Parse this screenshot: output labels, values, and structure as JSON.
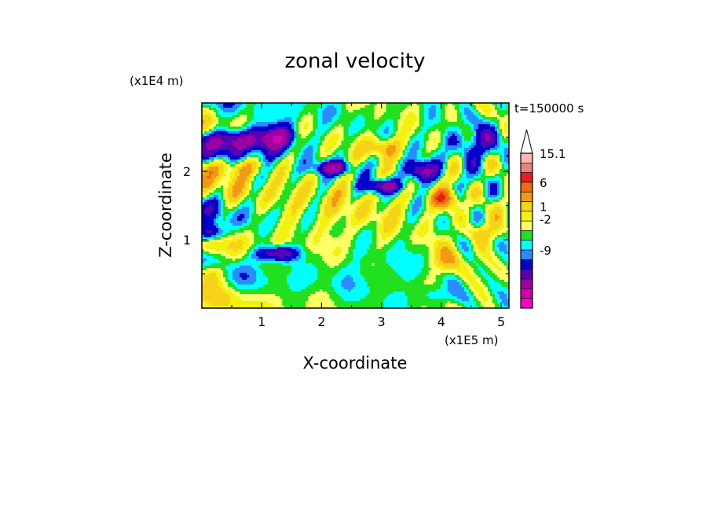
{
  "chart_data": {
    "type": "heatmap",
    "title": "zonal velocity",
    "xlabel": "X-coordinate",
    "ylabel": "Z-coordinate",
    "x_unit": "(x1E5 m)",
    "y_unit": "(x1E4 m)",
    "time_label": "t=150000 s",
    "x_ticks": [
      "1",
      "2",
      "3",
      "4",
      "5"
    ],
    "y_ticks": [
      "1",
      "2"
    ],
    "xlim": [
      0,
      5.13
    ],
    "ylim": [
      0,
      3.0
    ],
    "colorbar": {
      "labels": [
        "15.1",
        "6",
        "1",
        "-2",
        "-9"
      ],
      "colors": [
        "#ffffff",
        "#f7b8b8",
        "#ef7f7f",
        "#e81e1e",
        "#ef6a10",
        "#f39a12",
        "#f7d21a",
        "#f2f20e",
        "#ffff66",
        "#20e020",
        "#00ffff",
        "#2b8cff",
        "#0000c8",
        "#5a00b4",
        "#a000a0",
        "#d000b0",
        "#ff00c8"
      ],
      "extend": "max"
    },
    "features": [
      {
        "x": 0.55,
        "z": 2.45,
        "w": 0.7,
        "h": 0.22,
        "v": -8
      },
      {
        "x": 1.25,
        "z": 2.5,
        "w": 0.45,
        "h": 0.25,
        "v": -8
      },
      {
        "x": 0.5,
        "z": 2.05,
        "w": 0.9,
        "h": 0.18,
        "v": 4
      },
      {
        "x": 2.35,
        "z": 1.35,
        "w": 1.8,
        "h": 0.6,
        "v": 1.5
      },
      {
        "x": 2.9,
        "z": 0.6,
        "w": 1.1,
        "h": 0.45,
        "v": -1
      },
      {
        "x": 1.25,
        "z": 0.8,
        "w": 0.45,
        "h": 0.14,
        "v": -8
      },
      {
        "x": 3.0,
        "z": 2.35,
        "w": 0.35,
        "h": 0.18,
        "v": 5
      },
      {
        "x": 2.2,
        "z": 2.05,
        "w": 0.4,
        "h": 0.12,
        "v": -7
      },
      {
        "x": 3.05,
        "z": 1.78,
        "w": 0.4,
        "h": 0.12,
        "v": -8
      },
      {
        "x": 4.05,
        "z": 1.6,
        "w": 0.35,
        "h": 0.18,
        "v": 5
      },
      {
        "x": 3.65,
        "z": 2.0,
        "w": 0.3,
        "h": 0.18,
        "v": -8
      },
      {
        "x": 4.1,
        "z": 0.7,
        "w": 0.3,
        "h": 0.28,
        "v": 4
      },
      {
        "x": 4.6,
        "z": 2.4,
        "w": 0.6,
        "h": 0.3,
        "v": -4
      },
      {
        "x": 0.15,
        "z": 1.1,
        "w": 0.3,
        "h": 0.16,
        "v": -7
      },
      {
        "x": 0.15,
        "z": 0.5,
        "w": 0.3,
        "h": 0.2,
        "v": 5
      },
      {
        "x": 3.9,
        "z": 0.2,
        "w": 0.4,
        "h": 0.15,
        "v": -2
      },
      {
        "x": 4.7,
        "z": 1.1,
        "w": 0.35,
        "h": 0.2,
        "v": 3
      }
    ]
  }
}
